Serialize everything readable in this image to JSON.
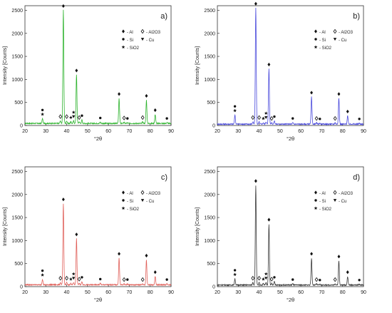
{
  "chart_data": [
    {
      "type": "line",
      "panel_label": "a)",
      "color": "#2db32d",
      "xlabel": "°2θ",
      "ylabel": "Intensity [Counts]",
      "xlim": [
        20,
        90
      ],
      "ylim": [
        0,
        2600
      ],
      "xticks": [
        20,
        30,
        40,
        50,
        60,
        70,
        80,
        90
      ],
      "yticks": [
        0,
        500,
        1000,
        1500,
        2000,
        2500
      ],
      "baseline": 45,
      "peaks": [
        {
          "x": 28.4,
          "y": 150,
          "markers": [
            "star",
            "circle"
          ]
        },
        {
          "x": 37.0,
          "y": 100,
          "markers": [
            "diamond-open"
          ]
        },
        {
          "x": 38.4,
          "y": 2500,
          "markers": [
            "diamond"
          ]
        },
        {
          "x": 40.0,
          "y": 100,
          "markers": [
            "diamond-open"
          ]
        },
        {
          "x": 42.0,
          "y": 80,
          "markers": [
            "star"
          ]
        },
        {
          "x": 43.3,
          "y": 100,
          "markers": [
            "triangle-down",
            "star"
          ]
        },
        {
          "x": 44.7,
          "y": 1100,
          "markers": [
            "diamond"
          ]
        },
        {
          "x": 46.0,
          "y": 80,
          "markers": [
            "diamond-open"
          ]
        },
        {
          "x": 47.3,
          "y": 120,
          "markers": [
            "circle"
          ]
        },
        {
          "x": 56.1,
          "y": 70,
          "markers": [
            "circle"
          ]
        },
        {
          "x": 65.1,
          "y": 590,
          "markers": [
            "diamond"
          ]
        },
        {
          "x": 67.5,
          "y": 70,
          "markers": [
            "diamond-open"
          ]
        },
        {
          "x": 69.1,
          "y": 60,
          "markers": [
            "circle"
          ]
        },
        {
          "x": 76.4,
          "y": 80,
          "markers": [
            "diamond-open"
          ]
        },
        {
          "x": 78.2,
          "y": 550,
          "markers": [
            "diamond"
          ]
        },
        {
          "x": 82.4,
          "y": 240,
          "markers": [
            "diamond"
          ]
        },
        {
          "x": 88.0,
          "y": 60,
          "markers": [
            "circle"
          ]
        }
      ],
      "legend": [
        {
          "symbol": "diamond",
          "label": "Al"
        },
        {
          "symbol": "diamond-open",
          "label": "Al2O3"
        },
        {
          "symbol": "circle",
          "label": "Si"
        },
        {
          "symbol": "triangle-down",
          "label": "Cu"
        },
        {
          "symbol": "star",
          "label": "SiO2"
        }
      ]
    },
    {
      "type": "line",
      "panel_label": "b)",
      "color": "#4a4adc",
      "xlabel": "°2θ",
      "ylabel": "Intensity [Counts]",
      "xlim": [
        20,
        90
      ],
      "ylim": [
        0,
        2600
      ],
      "xticks": [
        20,
        30,
        40,
        50,
        60,
        70,
        80,
        90
      ],
      "yticks": [
        0,
        500,
        1000,
        1500,
        2000,
        2500
      ],
      "baseline": 30,
      "peaks": [
        {
          "x": 28.4,
          "y": 230,
          "markers": [
            "star",
            "circle"
          ]
        },
        {
          "x": 37.0,
          "y": 80,
          "markers": [
            "diamond-open"
          ]
        },
        {
          "x": 38.4,
          "y": 2550,
          "markers": [
            "diamond"
          ]
        },
        {
          "x": 40.0,
          "y": 80,
          "markers": [
            "diamond-open"
          ]
        },
        {
          "x": 42.0,
          "y": 60,
          "markers": [
            "star"
          ]
        },
        {
          "x": 43.3,
          "y": 80,
          "markers": [
            "triangle-down",
            "star"
          ]
        },
        {
          "x": 44.7,
          "y": 1230,
          "markers": [
            "diamond"
          ]
        },
        {
          "x": 46.0,
          "y": 60,
          "markers": [
            "diamond-open"
          ]
        },
        {
          "x": 47.3,
          "y": 100,
          "markers": [
            "circle"
          ]
        },
        {
          "x": 56.1,
          "y": 60,
          "markers": [
            "circle"
          ]
        },
        {
          "x": 65.1,
          "y": 620,
          "markers": [
            "diamond"
          ]
        },
        {
          "x": 67.5,
          "y": 60,
          "markers": [
            "diamond-open"
          ]
        },
        {
          "x": 69.1,
          "y": 50,
          "markers": [
            "circle"
          ]
        },
        {
          "x": 76.4,
          "y": 60,
          "markers": [
            "diamond-open"
          ]
        },
        {
          "x": 78.2,
          "y": 590,
          "markers": [
            "diamond"
          ]
        },
        {
          "x": 82.4,
          "y": 210,
          "markers": [
            "diamond"
          ]
        },
        {
          "x": 88.0,
          "y": 50,
          "markers": [
            "circle"
          ]
        }
      ],
      "legend": [
        {
          "symbol": "diamond",
          "label": "Al"
        },
        {
          "symbol": "diamond-open",
          "label": "Al2O3"
        },
        {
          "symbol": "circle",
          "label": "Si"
        },
        {
          "symbol": "triangle-down",
          "label": "Cu"
        },
        {
          "symbol": "star",
          "label": "SiO2"
        }
      ]
    },
    {
      "type": "line",
      "panel_label": "c)",
      "color": "#e0605a",
      "xlabel": "°2θ",
      "ylabel": "Intensity [Counts]",
      "xlim": [
        20,
        90
      ],
      "ylim": [
        0,
        2600
      ],
      "xticks": [
        20,
        30,
        40,
        50,
        60,
        70,
        80,
        90
      ],
      "yticks": [
        0,
        500,
        1000,
        1500,
        2000,
        2500
      ],
      "baseline": 40,
      "peaks": [
        {
          "x": 28.4,
          "y": 160,
          "markers": [
            "star",
            "circle"
          ]
        },
        {
          "x": 37.0,
          "y": 90,
          "markers": [
            "diamond-open"
          ]
        },
        {
          "x": 38.4,
          "y": 1800,
          "markers": [
            "diamond"
          ]
        },
        {
          "x": 40.0,
          "y": 90,
          "markers": [
            "diamond-open"
          ]
        },
        {
          "x": 42.0,
          "y": 70,
          "markers": [
            "star"
          ]
        },
        {
          "x": 43.3,
          "y": 90,
          "markers": [
            "triangle-down",
            "star"
          ]
        },
        {
          "x": 44.7,
          "y": 1040,
          "markers": [
            "diamond"
          ]
        },
        {
          "x": 46.0,
          "y": 70,
          "markers": [
            "diamond-open"
          ]
        },
        {
          "x": 47.3,
          "y": 110,
          "markers": [
            "circle"
          ]
        },
        {
          "x": 56.1,
          "y": 70,
          "markers": [
            "circle"
          ]
        },
        {
          "x": 65.1,
          "y": 620,
          "markers": [
            "diamond"
          ]
        },
        {
          "x": 67.5,
          "y": 60,
          "markers": [
            "diamond-open"
          ]
        },
        {
          "x": 69.1,
          "y": 60,
          "markers": [
            "circle"
          ]
        },
        {
          "x": 76.4,
          "y": 60,
          "markers": [
            "diamond-open"
          ]
        },
        {
          "x": 78.2,
          "y": 580,
          "markers": [
            "diamond"
          ]
        },
        {
          "x": 82.4,
          "y": 220,
          "markers": [
            "diamond"
          ]
        },
        {
          "x": 88.0,
          "y": 60,
          "markers": [
            "circle"
          ]
        }
      ],
      "legend": [
        {
          "symbol": "diamond",
          "label": "Al"
        },
        {
          "symbol": "diamond-open",
          "label": "Al2O3"
        },
        {
          "symbol": "circle",
          "label": "Si"
        },
        {
          "symbol": "triangle-down",
          "label": "Cu"
        },
        {
          "symbol": "star",
          "label": "SiO2"
        }
      ]
    },
    {
      "type": "line",
      "panel_label": "d)",
      "color": "#3a3a3a",
      "xlabel": "°2θ",
      "ylabel": "Intensity [Counts]",
      "xlim": [
        20,
        90
      ],
      "ylim": [
        0,
        2600
      ],
      "xticks": [
        20,
        30,
        40,
        50,
        60,
        70,
        80,
        90
      ],
      "yticks": [
        0,
        500,
        1000,
        1500,
        2000,
        2500
      ],
      "baseline": 35,
      "peaks": [
        {
          "x": 28.4,
          "y": 170,
          "markers": [
            "star",
            "circle"
          ]
        },
        {
          "x": 37.0,
          "y": 90,
          "markers": [
            "diamond-open"
          ]
        },
        {
          "x": 38.4,
          "y": 2200,
          "markers": [
            "diamond"
          ]
        },
        {
          "x": 40.0,
          "y": 90,
          "markers": [
            "diamond-open"
          ]
        },
        {
          "x": 42.0,
          "y": 70,
          "markers": [
            "star"
          ]
        },
        {
          "x": 43.3,
          "y": 90,
          "markers": [
            "triangle-down",
            "star"
          ]
        },
        {
          "x": 44.7,
          "y": 1360,
          "markers": [
            "diamond"
          ]
        },
        {
          "x": 46.0,
          "y": 70,
          "markers": [
            "diamond-open"
          ]
        },
        {
          "x": 47.3,
          "y": 110,
          "markers": [
            "circle"
          ]
        },
        {
          "x": 56.1,
          "y": 60,
          "markers": [
            "circle"
          ]
        },
        {
          "x": 65.1,
          "y": 620,
          "markers": [
            "diamond"
          ]
        },
        {
          "x": 67.5,
          "y": 60,
          "markers": [
            "diamond-open"
          ]
        },
        {
          "x": 69.1,
          "y": 50,
          "markers": [
            "circle"
          ]
        },
        {
          "x": 76.4,
          "y": 60,
          "markers": [
            "diamond-open"
          ]
        },
        {
          "x": 78.2,
          "y": 560,
          "markers": [
            "diamond"
          ]
        },
        {
          "x": 82.4,
          "y": 220,
          "markers": [
            "diamond"
          ]
        },
        {
          "x": 88.0,
          "y": 50,
          "markers": [
            "circle"
          ]
        }
      ],
      "legend": [
        {
          "symbol": "diamond",
          "label": "Al"
        },
        {
          "symbol": "diamond-open",
          "label": "Al2O3"
        },
        {
          "symbol": "circle",
          "label": "Si"
        },
        {
          "symbol": "triangle-down",
          "label": "Cu"
        },
        {
          "symbol": "star",
          "label": "SiO2"
        }
      ]
    }
  ]
}
